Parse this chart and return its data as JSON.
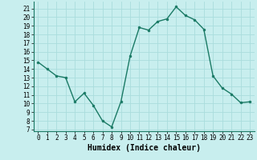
{
  "x": [
    0,
    1,
    2,
    3,
    4,
    5,
    6,
    7,
    8,
    9,
    10,
    11,
    12,
    13,
    14,
    15,
    16,
    17,
    18,
    19,
    20,
    21,
    22,
    23
  ],
  "y": [
    14.8,
    14.0,
    13.2,
    13.0,
    10.2,
    11.2,
    9.8,
    8.0,
    7.3,
    10.2,
    15.5,
    18.8,
    18.5,
    19.5,
    19.8,
    21.2,
    20.2,
    19.7,
    18.6,
    13.2,
    11.8,
    11.1,
    10.1,
    10.2
  ],
  "line_color": "#1a7a65",
  "marker_color": "#1a7a65",
  "bg_color": "#c8eeee",
  "grid_color": "#aadddd",
  "xlabel": "Humidex (Indice chaleur)",
  "xlabel_fontsize": 7,
  "ylabel_ticks": [
    7,
    8,
    9,
    10,
    11,
    12,
    13,
    14,
    15,
    16,
    17,
    18,
    19,
    20,
    21
  ],
  "xlim": [
    -0.5,
    23.5
  ],
  "ylim": [
    6.8,
    21.8
  ],
  "xticks": [
    0,
    1,
    2,
    3,
    4,
    5,
    6,
    7,
    8,
    9,
    10,
    11,
    12,
    13,
    14,
    15,
    16,
    17,
    18,
    19,
    20,
    21,
    22,
    23
  ],
  "tick_fontsize": 5.5,
  "linewidth": 1.0,
  "markersize": 2.0
}
